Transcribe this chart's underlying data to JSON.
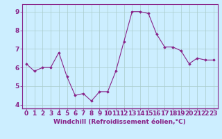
{
  "x": [
    0,
    1,
    2,
    3,
    4,
    5,
    6,
    7,
    8,
    9,
    10,
    11,
    12,
    13,
    14,
    15,
    16,
    17,
    18,
    19,
    20,
    21,
    22,
    23
  ],
  "y": [
    6.2,
    5.8,
    6.0,
    6.0,
    6.8,
    5.5,
    4.5,
    4.6,
    4.2,
    4.7,
    4.7,
    5.8,
    7.4,
    9.0,
    9.0,
    8.9,
    7.8,
    7.1,
    7.1,
    6.9,
    6.2,
    6.5,
    6.4,
    6.4
  ],
  "line_color": "#882288",
  "marker": "D",
  "marker_size": 1.8,
  "bg_color": "#cceeff",
  "grid_color": "#aacccc",
  "xlabel": "Windchill (Refroidissement éolien,°C)",
  "xlabel_color": "#882288",
  "xlabel_fontsize": 6.5,
  "tick_fontsize": 6.5,
  "tick_color": "#882288",
  "xlim": [
    -0.5,
    23.5
  ],
  "ylim": [
    3.8,
    9.4
  ],
  "yticks": [
    4,
    5,
    6,
    7,
    8,
    9
  ],
  "xticks": [
    0,
    1,
    2,
    3,
    4,
    5,
    6,
    7,
    8,
    9,
    10,
    11,
    12,
    13,
    14,
    15,
    16,
    17,
    18,
    19,
    20,
    21,
    22,
    23
  ],
  "spine_color": "#882288",
  "linewidth": 0.8
}
